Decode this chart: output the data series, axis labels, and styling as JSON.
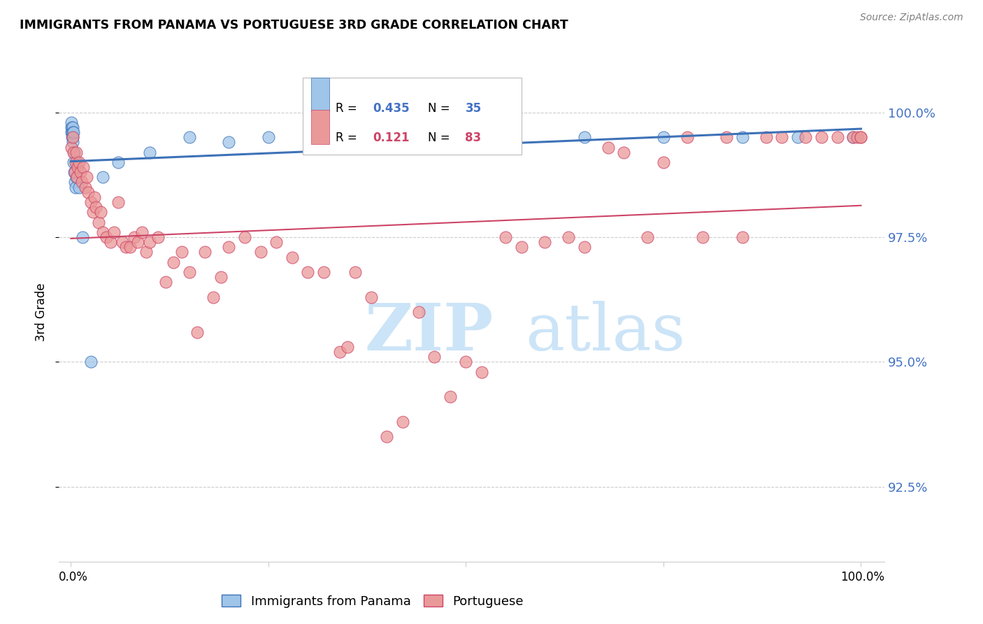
{
  "title": "IMMIGRANTS FROM PANAMA VS PORTUGUESE 3RD GRADE CORRELATION CHART",
  "source": "Source: ZipAtlas.com",
  "ylabel": "3rd Grade",
  "blue_r": "0.435",
  "blue_n": "35",
  "pink_r": "0.121",
  "pink_n": "83",
  "blue_fill": "#9fc5e8",
  "blue_edge": "#3d72b8",
  "blue_line": "#3d72b8",
  "pink_fill": "#ea9999",
  "pink_edge": "#cc4466",
  "pink_line": "#cc4466",
  "label_color": "#4472c4",
  "grid_color": "#cccccc",
  "watermark_color": "#cce4f7",
  "ymin": 91.0,
  "ymax": 101.0,
  "yticks": [
    92.5,
    95.0,
    97.5,
    100.0
  ],
  "ytick_labels": [
    "92.5%",
    "95.0%",
    "97.5%",
    "100.0%"
  ],
  "xticks": [
    0,
    25,
    50,
    75,
    100
  ],
  "blue_x": [
    0.05,
    0.08,
    0.1,
    0.12,
    0.15,
    0.18,
    0.2,
    0.22,
    0.25,
    0.28,
    0.3,
    0.35,
    0.4,
    0.45,
    0.5,
    0.6,
    0.7,
    0.8,
    1.0,
    1.5,
    2.5,
    4.0,
    6.0,
    10.0,
    15.0,
    20.0,
    25.0,
    35.0,
    45.0,
    55.0,
    65.0,
    75.0,
    85.0,
    92.0,
    99.0
  ],
  "blue_y": [
    99.6,
    99.7,
    99.8,
    99.7,
    99.6,
    99.5,
    99.7,
    99.6,
    99.5,
    99.4,
    99.6,
    99.0,
    98.8,
    99.2,
    98.6,
    98.5,
    98.7,
    99.0,
    98.5,
    97.5,
    95.0,
    98.7,
    99.0,
    99.2,
    99.5,
    99.4,
    99.5,
    99.5,
    99.5,
    99.5,
    99.5,
    99.5,
    99.5,
    99.5,
    99.5
  ],
  "pink_x": [
    0.1,
    0.2,
    0.3,
    0.5,
    0.6,
    0.7,
    0.8,
    0.9,
    1.0,
    1.2,
    1.4,
    1.6,
    1.8,
    2.0,
    2.2,
    2.5,
    2.8,
    3.0,
    3.2,
    3.5,
    3.8,
    4.0,
    4.5,
    5.0,
    5.5,
    6.0,
    6.5,
    7.0,
    7.5,
    8.0,
    8.5,
    9.0,
    9.5,
    10.0,
    11.0,
    12.0,
    13.0,
    14.0,
    15.0,
    16.0,
    17.0,
    18.0,
    19.0,
    20.0,
    22.0,
    24.0,
    26.0,
    28.0,
    30.0,
    32.0,
    34.0,
    35.0,
    36.0,
    38.0,
    40.0,
    42.0,
    44.0,
    46.0,
    48.0,
    50.0,
    52.0,
    55.0,
    57.0,
    60.0,
    63.0,
    65.0,
    68.0,
    70.0,
    73.0,
    75.0,
    78.0,
    80.0,
    83.0,
    85.0,
    88.0,
    90.0,
    93.0,
    95.0,
    97.0,
    99.0,
    99.5,
    100.0,
    100.0
  ],
  "pink_y": [
    99.3,
    99.5,
    99.2,
    98.8,
    99.0,
    99.2,
    98.7,
    98.9,
    99.0,
    98.8,
    98.6,
    98.9,
    98.5,
    98.7,
    98.4,
    98.2,
    98.0,
    98.3,
    98.1,
    97.8,
    98.0,
    97.6,
    97.5,
    97.4,
    97.6,
    98.2,
    97.4,
    97.3,
    97.3,
    97.5,
    97.4,
    97.6,
    97.2,
    97.4,
    97.5,
    96.6,
    97.0,
    97.2,
    96.8,
    95.6,
    97.2,
    96.3,
    96.7,
    97.3,
    97.5,
    97.2,
    97.4,
    97.1,
    96.8,
    96.8,
    95.2,
    95.3,
    96.8,
    96.3,
    93.5,
    93.8,
    96.0,
    95.1,
    94.3,
    95.0,
    94.8,
    97.5,
    97.3,
    97.4,
    97.5,
    97.3,
    99.3,
    99.2,
    97.5,
    99.0,
    99.5,
    97.5,
    99.5,
    97.5,
    99.5,
    99.5,
    99.5,
    99.5,
    99.5,
    99.5,
    99.5,
    99.5,
    99.5
  ]
}
